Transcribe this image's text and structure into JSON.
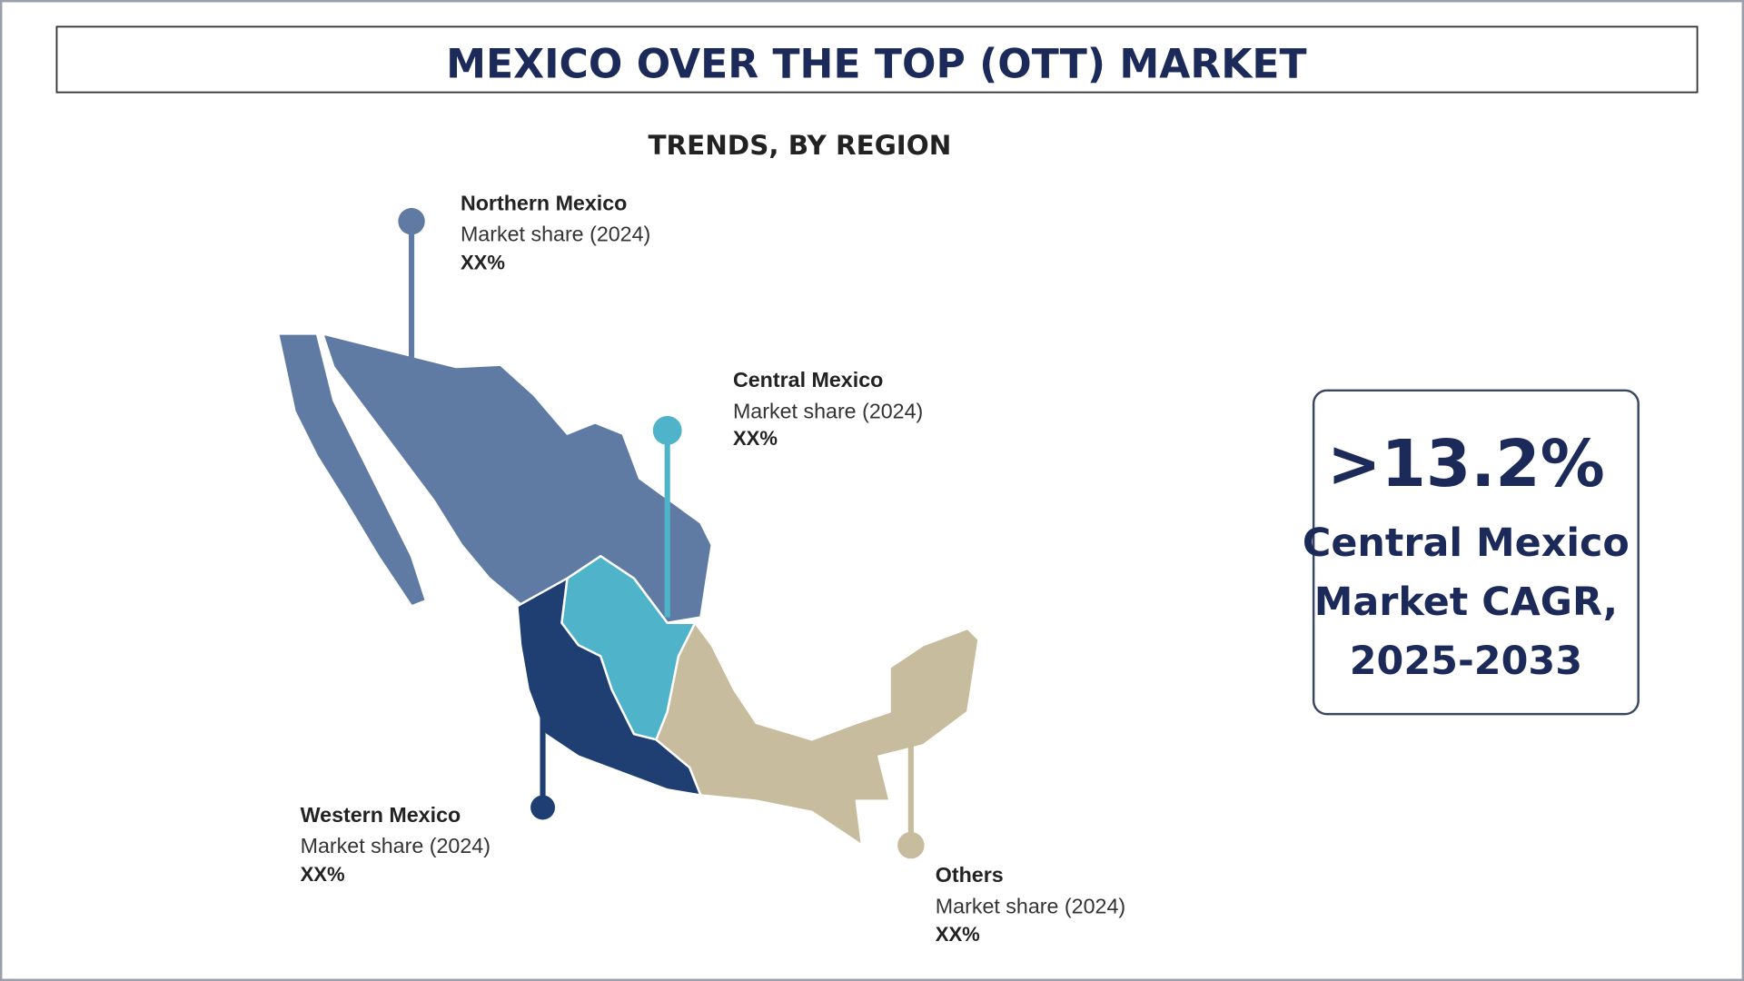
{
  "header": {
    "title": "MEXICO OVER THE TOP (OTT) MARKET",
    "subtitle": "TRENDS, BY REGION"
  },
  "regions": [
    {
      "name": "Northern Mexico",
      "label": "Market share (2024)",
      "value": "XX%",
      "color": "#5f7ba3"
    },
    {
      "name": "Central Mexico",
      "label": "Market share (2024)",
      "value": "XX%",
      "color": "#4fb3c9"
    },
    {
      "name": "Western Mexico",
      "label": "Market share (2024)",
      "value": "XX%",
      "color": "#1f3f72"
    },
    {
      "name": "Others",
      "label": "Market share (2024)",
      "value": "XX%",
      "color": "#c8bc9e"
    }
  ],
  "callout": {
    "value": ">13.2%",
    "lines": [
      "Central Mexico",
      "Market CAGR,",
      "2025-2033"
    ]
  }
}
